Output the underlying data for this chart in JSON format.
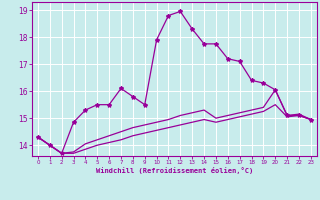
{
  "xlabel": "Windchill (Refroidissement éolien,°C)",
  "bg_color": "#c8ecec",
  "line_color": "#990099",
  "grid_color": "#ffffff",
  "xlim": [
    -0.5,
    23.5
  ],
  "ylim": [
    13.6,
    19.3
  ],
  "yticks": [
    14,
    15,
    16,
    17,
    18,
    19
  ],
  "xticks": [
    0,
    1,
    2,
    3,
    4,
    5,
    6,
    7,
    8,
    9,
    10,
    11,
    12,
    13,
    14,
    15,
    16,
    17,
    18,
    19,
    20,
    21,
    22,
    23
  ],
  "line1_x": [
    0,
    1,
    2,
    3,
    4,
    5,
    6,
    7,
    8,
    9,
    10,
    11,
    12,
    13,
    14,
    15,
    16,
    17,
    18,
    19,
    20,
    21,
    22,
    23
  ],
  "line1_y": [
    14.3,
    14.0,
    13.7,
    14.85,
    15.3,
    15.5,
    15.5,
    16.1,
    15.8,
    15.5,
    17.9,
    18.8,
    18.95,
    18.3,
    17.75,
    17.75,
    17.2,
    17.1,
    16.4,
    16.3,
    16.05,
    15.1,
    15.1,
    14.95
  ],
  "line2_x": [
    0,
    1,
    2,
    3,
    4,
    5,
    6,
    7,
    8,
    9,
    10,
    11,
    12,
    13,
    14,
    15,
    16,
    17,
    18,
    19,
    20,
    21,
    22,
    23
  ],
  "line2_y": [
    14.3,
    14.0,
    13.7,
    13.75,
    14.05,
    14.2,
    14.35,
    14.5,
    14.65,
    14.75,
    14.85,
    14.95,
    15.1,
    15.2,
    15.3,
    15.0,
    15.1,
    15.2,
    15.3,
    15.4,
    16.05,
    15.1,
    15.15,
    14.95
  ],
  "line3_x": [
    0,
    1,
    2,
    3,
    4,
    5,
    6,
    7,
    8,
    9,
    10,
    11,
    12,
    13,
    14,
    15,
    16,
    17,
    18,
    19,
    20,
    21,
    22,
    23
  ],
  "line3_y": [
    14.3,
    14.0,
    13.7,
    13.7,
    13.85,
    14.0,
    14.1,
    14.2,
    14.35,
    14.45,
    14.55,
    14.65,
    14.75,
    14.85,
    14.95,
    14.85,
    14.95,
    15.05,
    15.15,
    15.25,
    15.5,
    15.05,
    15.1,
    14.95
  ]
}
